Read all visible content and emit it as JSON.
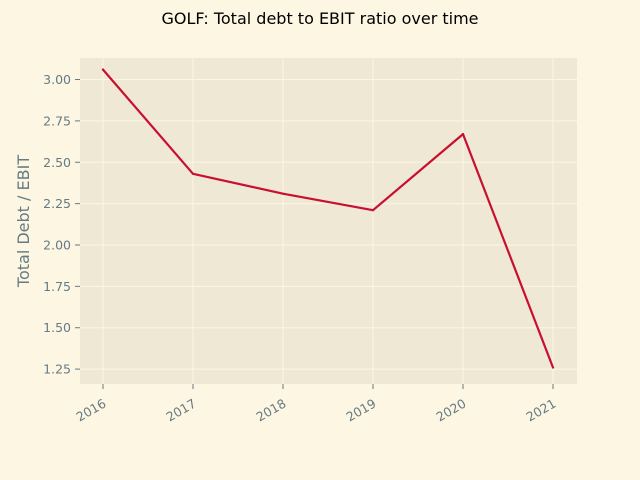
{
  "chart_data": {
    "type": "line",
    "title": "GOLF: Total debt to EBIT ratio over time",
    "xlabel": "",
    "ylabel": "Total Debt / EBIT",
    "categories": [
      "2016",
      "2017",
      "2018",
      "2019",
      "2020",
      "2021"
    ],
    "series": [
      {
        "name": "Total Debt / EBIT",
        "values": [
          3.06,
          2.43,
          2.31,
          2.21,
          2.67,
          1.26
        ]
      }
    ],
    "yticks": [
      "1.25",
      "1.50",
      "1.75",
      "2.00",
      "2.25",
      "2.50",
      "2.75",
      "3.00"
    ],
    "ylim": [
      1.16,
      3.13
    ],
    "grid": true,
    "colors": {
      "background": "#fdf6e3",
      "plot_background": "#eee8d5",
      "grid": "#fdf6e3",
      "line": "#c8102e",
      "text": "#657b83"
    }
  }
}
